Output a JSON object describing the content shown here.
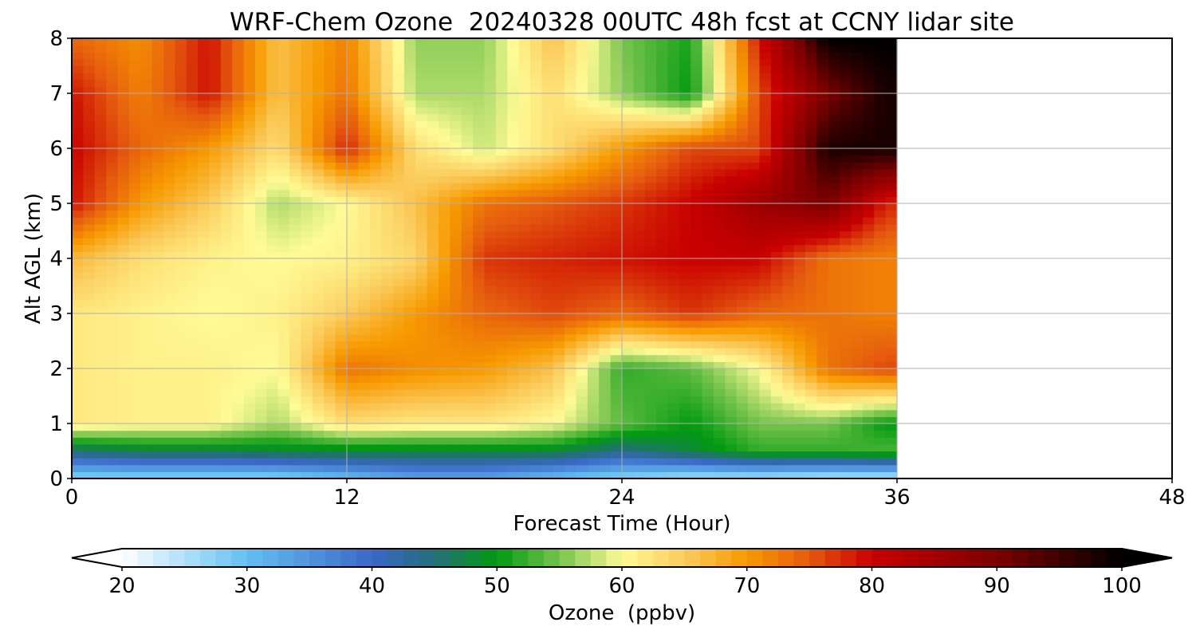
{
  "chart_data": {
    "type": "heatmap",
    "title": "WRF-Chem Ozone  20240328 00UTC 48h fcst at CCNY lidar site",
    "xlabel": "Forecast Time (Hour)",
    "ylabel": "Alt AGL (km)",
    "xlim": [
      0,
      48
    ],
    "ylim": [
      0,
      8
    ],
    "x_ticks": [
      "0",
      "12",
      "24",
      "36",
      "48"
    ],
    "y_ticks": [
      "0",
      "1",
      "2",
      "3",
      "4",
      "5",
      "6",
      "7",
      "8"
    ],
    "grid": true,
    "data_extent_hours": 36,
    "colorbar": {
      "label": "Ozone  (ppbv)",
      "min": 20,
      "max": 100,
      "ticks": [
        "20",
        "30",
        "40",
        "50",
        "60",
        "70",
        "80",
        "90",
        "100"
      ],
      "extend": "both",
      "colormap": [
        [
          20,
          "#ffffff"
        ],
        [
          30,
          "#63c0f2"
        ],
        [
          40,
          "#3b67c7"
        ],
        [
          45,
          "#246e7a"
        ],
        [
          50,
          "#019a10"
        ],
        [
          55,
          "#76c44c"
        ],
        [
          60,
          "#fffb96"
        ],
        [
          65,
          "#fbcb5c"
        ],
        [
          70,
          "#f79a00"
        ],
        [
          75,
          "#e55a0f"
        ],
        [
          80,
          "#c80000"
        ],
        [
          90,
          "#7c0000"
        ],
        [
          100,
          "#000000"
        ]
      ]
    },
    "hours": [
      0,
      3,
      6,
      9,
      12,
      15,
      18,
      21,
      24,
      27,
      30,
      33,
      35.5
    ],
    "altitudes_km": [
      0,
      0.5,
      1,
      2,
      3,
      4,
      5,
      6,
      7,
      8
    ],
    "ozone_ppbv": [
      [
        27,
        27,
        27,
        27,
        30,
        33,
        33,
        30,
        27,
        25,
        25,
        24,
        24
      ],
      [
        45,
        47,
        47,
        48,
        48,
        48,
        48,
        48,
        44,
        48,
        52,
        52,
        53
      ],
      [
        62,
        61,
        61,
        57,
        63,
        62,
        62,
        60,
        54,
        50,
        55,
        55,
        50
      ],
      [
        62,
        61,
        61,
        60,
        73,
        71,
        70,
        66,
        52,
        54,
        60,
        73,
        76
      ],
      [
        62,
        61,
        60,
        61,
        65,
        70,
        74,
        76,
        74,
        77,
        74,
        73,
        72
      ],
      [
        67,
        63,
        61,
        60,
        61,
        64,
        77,
        78,
        79,
        80,
        80,
        73,
        72
      ],
      [
        79,
        70,
        65,
        57,
        60,
        66,
        73,
        75,
        77,
        80,
        86,
        90,
        78
      ],
      [
        80,
        74,
        70,
        63,
        78,
        63,
        58,
        63,
        70,
        76,
        76,
        98,
        98
      ],
      [
        79,
        72,
        79,
        66,
        73,
        57,
        57,
        63,
        56,
        50,
        76,
        90,
        98
      ],
      [
        74,
        71,
        79,
        66,
        72,
        56,
        56,
        66,
        55,
        51,
        79,
        100,
        100
      ]
    ]
  }
}
